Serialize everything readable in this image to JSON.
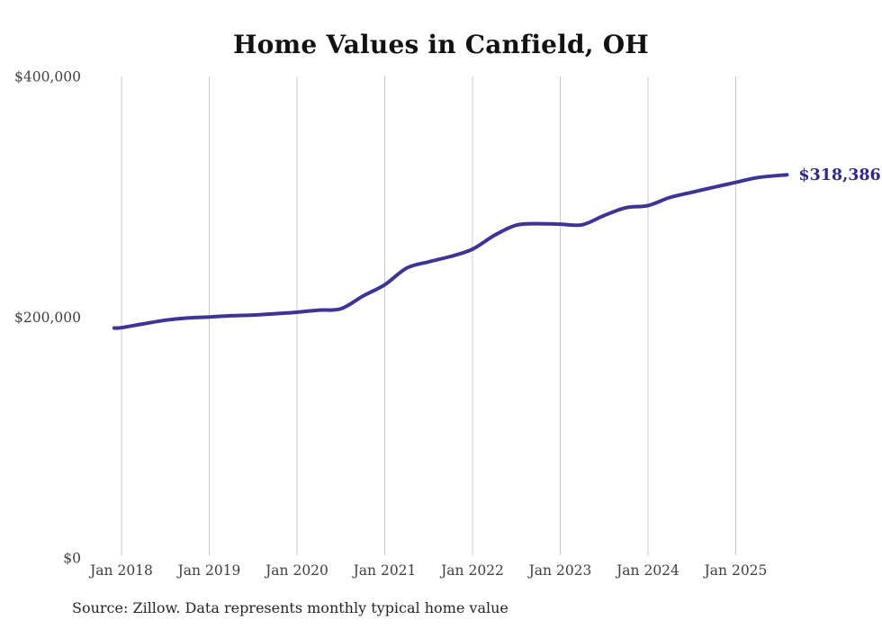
{
  "page": {
    "background": "#ffffff"
  },
  "chart_data": {
    "type": "line",
    "title": "Home Values in Canfield, OH",
    "xlabel": "",
    "ylabel": "",
    "ylim": [
      0,
      400000
    ],
    "x_range": [
      "2017-12",
      "2025-08"
    ],
    "grid": "vertical-only",
    "grid_color": "#c9c9c9",
    "axis_label_color": "#3f3f3f",
    "line_color": "#3a3596",
    "legend": "none",
    "y_ticks": [
      {
        "label": "$0",
        "value": 0
      },
      {
        "label": "$200,000",
        "value": 200000
      },
      {
        "label": "$400,000",
        "value": 400000
      }
    ],
    "x_ticks": [
      {
        "label": "Jan 2018",
        "date": "2018-01"
      },
      {
        "label": "Jan 2019",
        "date": "2019-01"
      },
      {
        "label": "Jan 2020",
        "date": "2020-01"
      },
      {
        "label": "Jan 2021",
        "date": "2021-01"
      },
      {
        "label": "Jan 2022",
        "date": "2022-01"
      },
      {
        "label": "Jan 2023",
        "date": "2023-01"
      },
      {
        "label": "Jan 2024",
        "date": "2024-01"
      },
      {
        "label": "Jan 2025",
        "date": "2025-01"
      }
    ],
    "series": [
      {
        "name": "Monthly typical home value",
        "color": "#3a3596",
        "points": [
          [
            "2017-12",
            191000
          ],
          [
            "2018-01",
            191300
          ],
          [
            "2018-04",
            194500
          ],
          [
            "2018-07",
            197500
          ],
          [
            "2018-10",
            199300
          ],
          [
            "2019-01",
            200200
          ],
          [
            "2019-04",
            201200
          ],
          [
            "2019-07",
            201800
          ],
          [
            "2019-10",
            202900
          ],
          [
            "2020-01",
            204100
          ],
          [
            "2020-04",
            205900
          ],
          [
            "2020-07",
            207000
          ],
          [
            "2020-10",
            217500
          ],
          [
            "2021-01",
            227000
          ],
          [
            "2021-04",
            240800
          ],
          [
            "2021-07",
            246000
          ],
          [
            "2021-10",
            250500
          ],
          [
            "2022-01",
            256500
          ],
          [
            "2022-04",
            268000
          ],
          [
            "2022-07",
            276500
          ],
          [
            "2022-10",
            277700
          ],
          [
            "2023-01",
            277300
          ],
          [
            "2023-04",
            276800
          ],
          [
            "2023-07",
            284500
          ],
          [
            "2023-10",
            291000
          ],
          [
            "2024-01",
            292800
          ],
          [
            "2024-04",
            299500
          ],
          [
            "2024-07",
            303800
          ],
          [
            "2024-10",
            308000
          ],
          [
            "2025-01",
            312000
          ],
          [
            "2025-04",
            316000
          ],
          [
            "2025-08",
            318386
          ]
        ]
      }
    ],
    "end_label": {
      "text": "$318,386",
      "color": "#2e2a8b"
    },
    "source_note": "Source: Zillow. Data represents monthly typical home value"
  }
}
